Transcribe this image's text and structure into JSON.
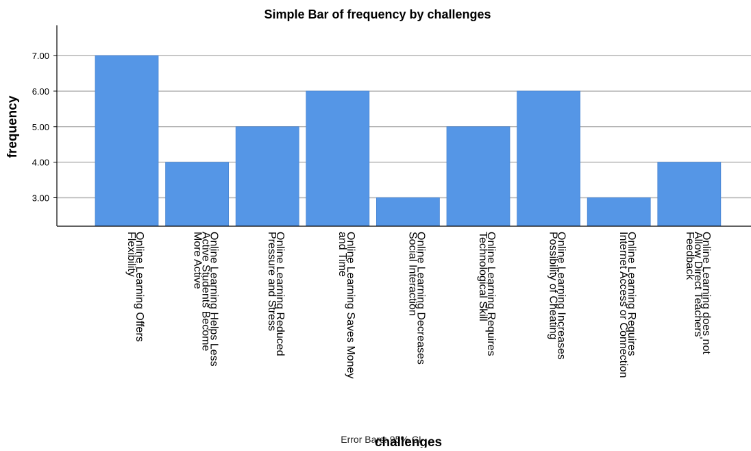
{
  "chart_data": {
    "type": "bar",
    "title": "Simple Bar of frequency by challenges",
    "xlabel": "challenges",
    "ylabel": "frequency",
    "ylim": [
      2.2,
      7.85
    ],
    "yticks": [
      "3.00",
      "4.00",
      "5.00",
      "6.00",
      "7.00"
    ],
    "grid": true,
    "bar_color": "#5596e6",
    "footnote": "Error Bars: 95% CI",
    "categories": [
      [
        "Online Learning Offers",
        "Flexibility"
      ],
      [
        "Online Learning Helps Less",
        "Active Students Become",
        "More Active"
      ],
      [
        "Online Learning Reduced",
        "Pressure and Stress"
      ],
      [
        "Online Learning Saves Money",
        "and Time"
      ],
      [
        "Online Learning Decreases",
        "Social Interaction"
      ],
      [
        "Online Learning Requires",
        "Technological Skill"
      ],
      [
        "Online Learning Increases",
        "Possibility of Cheating"
      ],
      [
        "Online Learning Requires",
        "Internet Access or Connection"
      ],
      [
        "Online Learning does not",
        "Allow Direct Teachers'",
        "Feedback"
      ]
    ],
    "values": [
      7,
      4,
      5,
      6,
      3,
      5,
      6,
      3,
      4
    ]
  }
}
